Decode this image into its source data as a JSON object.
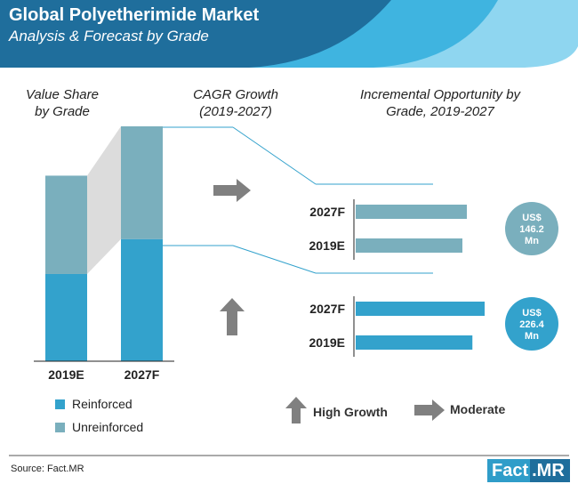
{
  "header": {
    "title": "Global Polyetherimide Market",
    "subtitle": "Analysis & Forecast by Grade"
  },
  "headings": {
    "value_share": "Value Share by Grade",
    "cagr": "CAGR Growth (2019-2027)",
    "opportunity": "Incremental Opportunity by Grade, 2019-2027"
  },
  "legend": [
    {
      "label": "Reinforced",
      "color": "#33a2cc"
    },
    {
      "label": "Unreinforced",
      "color": "#7aafbd"
    }
  ],
  "key": {
    "high_growth": "High Growth",
    "moderate": "Moderate"
  },
  "source": "Source: Fact.MR",
  "logo": {
    "part1": "Fact",
    "part2": ".MR"
  },
  "colors": {
    "header_dark": "#1f6e9c",
    "header_light": "#6ec6e6",
    "arrow": "#808080",
    "reinforced": "#33a2cc",
    "unreinforced": "#7aafbd"
  },
  "chart_data": [
    {
      "type": "bar",
      "stacked": true,
      "title": "Value Share by Grade",
      "categories": [
        "2019E",
        "2027F"
      ],
      "series": [
        {
          "name": "Reinforced",
          "values": [
            0.47,
            0.52
          ]
        },
        {
          "name": "Unreinforced",
          "values": [
            0.53,
            0.48
          ]
        }
      ],
      "relative_market_size": [
        0.79,
        1.0
      ],
      "ylim": [
        0,
        1
      ]
    },
    {
      "type": "bar",
      "orientation": "horizontal",
      "title": "Incremental Opportunity by Grade, 2019-2027",
      "groups": [
        {
          "grade": "Unreinforced",
          "categories": [
            "2027F",
            "2019E"
          ],
          "values": [
            100,
            96
          ],
          "cagr_indicator": "Moderate",
          "opportunity_label": "US$ 146.2 Mn",
          "opportunity_lines": [
            "US$",
            "146.2",
            "Mn"
          ],
          "color": "#7aafbd"
        },
        {
          "grade": "Reinforced",
          "categories": [
            "2027F",
            "2019E"
          ],
          "values": [
            116,
            105
          ],
          "cagr_indicator": "High Growth",
          "opportunity_label": "US$ 226.4 Mn",
          "opportunity_lines": [
            "US$",
            "226.4",
            "Mn"
          ],
          "color": "#33a2cc"
        }
      ],
      "xlim": [
        0,
        120
      ]
    }
  ]
}
